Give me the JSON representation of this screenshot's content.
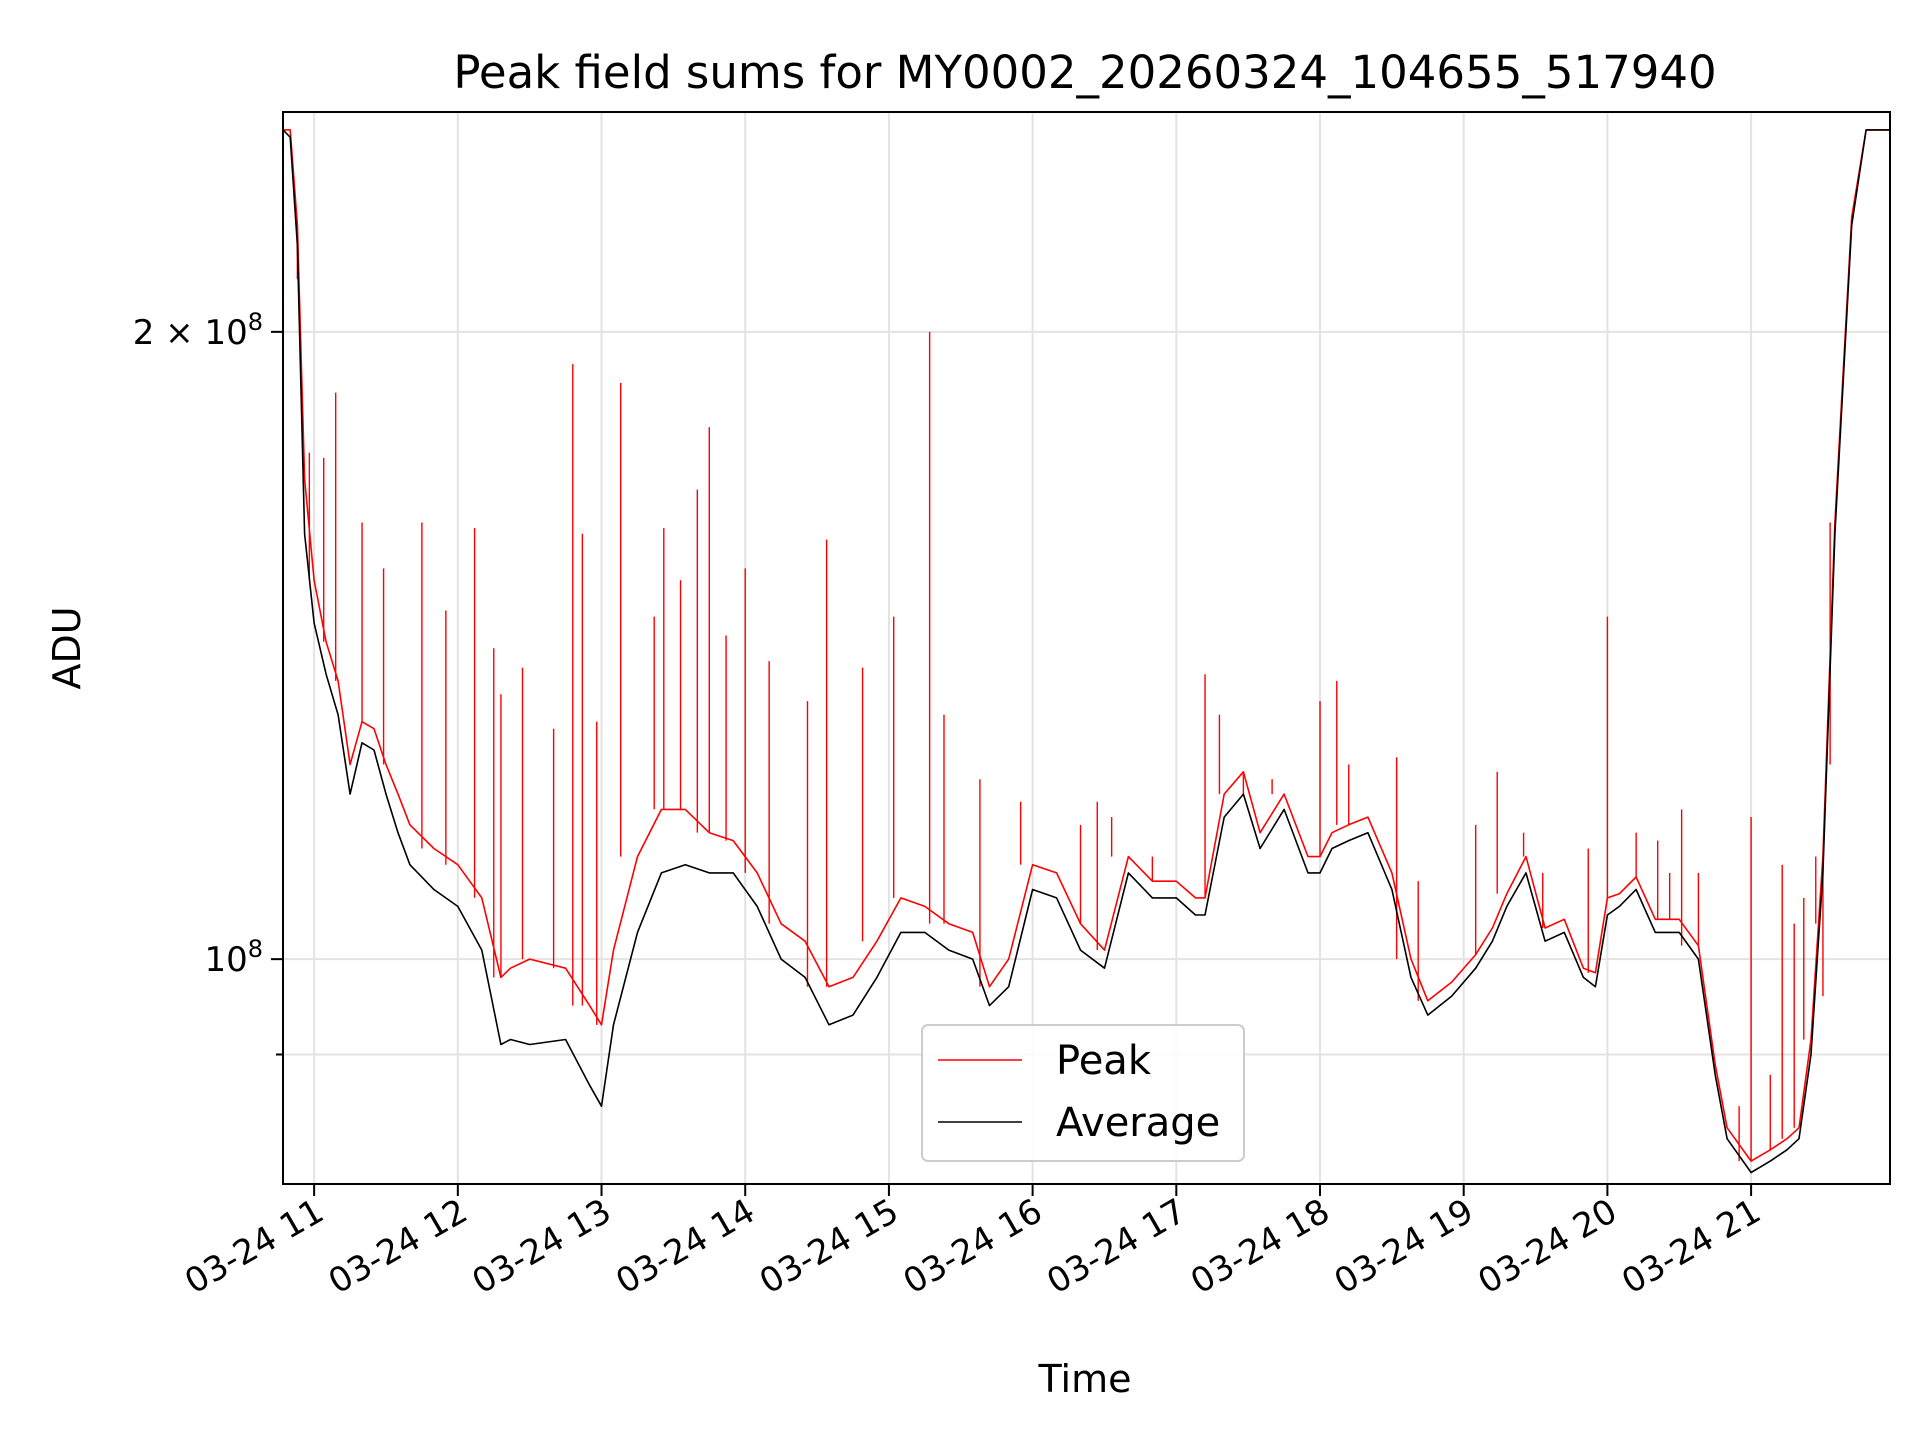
{
  "chart_data": {
    "type": "line",
    "title": "Peak field sums for MY0002_20260324_104655_517940",
    "xlabel": "Time",
    "ylabel": "ADU",
    "x_scale": "time",
    "y_scale": "log",
    "xlim": [
      "2026-03-24T10:47",
      "2026-03-24T21:58"
    ],
    "ylim": [
      78000000,
      255000000
    ],
    "x_ticks": [
      {
        "t": "2026-03-24T11:00",
        "label": "03-24 11"
      },
      {
        "t": "2026-03-24T12:00",
        "label": "03-24 12"
      },
      {
        "t": "2026-03-24T13:00",
        "label": "03-24 13"
      },
      {
        "t": "2026-03-24T14:00",
        "label": "03-24 14"
      },
      {
        "t": "2026-03-24T15:00",
        "label": "03-24 15"
      },
      {
        "t": "2026-03-24T16:00",
        "label": "03-24 16"
      },
      {
        "t": "2026-03-24T17:00",
        "label": "03-24 17"
      },
      {
        "t": "2026-03-24T18:00",
        "label": "03-24 18"
      },
      {
        "t": "2026-03-24T19:00",
        "label": "03-24 19"
      },
      {
        "t": "2026-03-24T20:00",
        "label": "03-24 20"
      },
      {
        "t": "2026-03-24T21:00",
        "label": "03-24 21"
      }
    ],
    "y_ticks": [
      {
        "value": 100000000,
        "mantissa": "",
        "base": "10",
        "exp": "8"
      },
      {
        "value": 200000000,
        "mantissa": "2 × ",
        "base": "10",
        "exp": "8"
      }
    ],
    "y_minor_ticks": [
      90000000
    ],
    "grid": true,
    "legend": "lower center",
    "series": [
      {
        "name": "Average",
        "color": "#000000",
        "x": [
          "2026-03-24T10:47",
          "2026-03-24T10:50",
          "2026-03-24T10:53",
          "2026-03-24T10:56",
          "2026-03-24T11:00",
          "2026-03-24T11:05",
          "2026-03-24T11:10",
          "2026-03-24T11:15",
          "2026-03-24T11:20",
          "2026-03-24T11:25",
          "2026-03-24T11:30",
          "2026-03-24T11:35",
          "2026-03-24T11:40",
          "2026-03-24T11:50",
          "2026-03-24T12:00",
          "2026-03-24T12:10",
          "2026-03-24T12:18",
          "2026-03-24T12:22",
          "2026-03-24T12:30",
          "2026-03-24T12:45",
          "2026-03-24T12:55",
          "2026-03-24T13:00",
          "2026-03-24T13:05",
          "2026-03-24T13:15",
          "2026-03-24T13:25",
          "2026-03-24T13:35",
          "2026-03-24T13:45",
          "2026-03-24T13:55",
          "2026-03-24T14:05",
          "2026-03-24T14:15",
          "2026-03-24T14:25",
          "2026-03-24T14:35",
          "2026-03-24T14:45",
          "2026-03-24T14:55",
          "2026-03-24T15:05",
          "2026-03-24T15:15",
          "2026-03-24T15:25",
          "2026-03-24T15:35",
          "2026-03-24T15:42",
          "2026-03-24T15:50",
          "2026-03-24T16:00",
          "2026-03-24T16:10",
          "2026-03-24T16:20",
          "2026-03-24T16:30",
          "2026-03-24T16:40",
          "2026-03-24T16:50",
          "2026-03-24T17:00",
          "2026-03-24T17:08",
          "2026-03-24T17:12",
          "2026-03-24T17:20",
          "2026-03-24T17:28",
          "2026-03-24T17:35",
          "2026-03-24T17:45",
          "2026-03-24T17:55",
          "2026-03-24T18:00",
          "2026-03-24T18:05",
          "2026-03-24T18:12",
          "2026-03-24T18:20",
          "2026-03-24T18:30",
          "2026-03-24T18:38",
          "2026-03-24T18:45",
          "2026-03-24T18:55",
          "2026-03-24T19:05",
          "2026-03-24T19:12",
          "2026-03-24T19:18",
          "2026-03-24T19:26",
          "2026-03-24T19:34",
          "2026-03-24T19:42",
          "2026-03-24T19:50",
          "2026-03-24T19:55",
          "2026-03-24T20:00",
          "2026-03-24T20:05",
          "2026-03-24T20:12",
          "2026-03-24T20:20",
          "2026-03-24T20:30",
          "2026-03-24T20:38",
          "2026-03-24T20:45",
          "2026-03-24T20:50",
          "2026-03-24T21:00",
          "2026-03-24T21:08",
          "2026-03-24T21:15",
          "2026-03-24T21:20",
          "2026-03-24T21:25",
          "2026-03-24T21:30",
          "2026-03-24T21:35",
          "2026-03-24T21:42",
          "2026-03-24T21:48",
          "2026-03-24T21:52",
          "2026-03-24T21:58"
        ],
        "y": [
          250000000,
          248000000,
          220000000,
          160000000,
          145000000,
          137000000,
          131000000,
          120000000,
          127000000,
          126000000,
          120000000,
          115000000,
          111000000,
          108000000,
          106000000,
          101000000,
          91000000,
          91500000,
          91000000,
          91500000,
          87000000,
          85000000,
          93000000,
          103000000,
          110000000,
          111000000,
          110000000,
          110000000,
          106000000,
          100000000,
          98000000,
          93000000,
          94000000,
          98000000,
          103000000,
          103000000,
          101000000,
          100000000,
          95000000,
          97000000,
          108000000,
          107000000,
          101000000,
          99000000,
          110000000,
          107000000,
          107000000,
          105000000,
          105000000,
          117000000,
          120000000,
          113000000,
          118000000,
          110000000,
          110000000,
          113000000,
          114000000,
          115000000,
          108000000,
          98000000,
          94000000,
          96000000,
          99000000,
          102000000,
          106000000,
          110000000,
          102000000,
          103000000,
          98000000,
          97000000,
          105000000,
          106000000,
          108000000,
          103000000,
          103000000,
          100000000,
          88000000,
          82000000,
          79000000,
          80000000,
          81000000,
          82000000,
          90000000,
          110000000,
          160000000,
          225000000,
          250000000,
          250000000,
          250000000
        ]
      },
      {
        "name": "Peak",
        "color": "#ff0000",
        "x": [
          "2026-03-24T10:47",
          "2026-03-24T10:50",
          "2026-03-24T10:53",
          "2026-03-24T10:56",
          "2026-03-24T11:00",
          "2026-03-24T11:05",
          "2026-03-24T11:10",
          "2026-03-24T11:15",
          "2026-03-24T11:20",
          "2026-03-24T11:25",
          "2026-03-24T11:30",
          "2026-03-24T11:35",
          "2026-03-24T11:40",
          "2026-03-24T11:50",
          "2026-03-24T12:00",
          "2026-03-24T12:10",
          "2026-03-24T12:18",
          "2026-03-24T12:22",
          "2026-03-24T12:30",
          "2026-03-24T12:45",
          "2026-03-24T12:55",
          "2026-03-24T13:00",
          "2026-03-24T13:05",
          "2026-03-24T13:15",
          "2026-03-24T13:25",
          "2026-03-24T13:35",
          "2026-03-24T13:45",
          "2026-03-24T13:55",
          "2026-03-24T14:05",
          "2026-03-24T14:15",
          "2026-03-24T14:25",
          "2026-03-24T14:35",
          "2026-03-24T14:45",
          "2026-03-24T14:55",
          "2026-03-24T15:05",
          "2026-03-24T15:15",
          "2026-03-24T15:25",
          "2026-03-24T15:35",
          "2026-03-24T15:42",
          "2026-03-24T15:50",
          "2026-03-24T16:00",
          "2026-03-24T16:10",
          "2026-03-24T16:20",
          "2026-03-24T16:30",
          "2026-03-24T16:40",
          "2026-03-24T16:50",
          "2026-03-24T17:00",
          "2026-03-24T17:08",
          "2026-03-24T17:12",
          "2026-03-24T17:20",
          "2026-03-24T17:28",
          "2026-03-24T17:35",
          "2026-03-24T17:45",
          "2026-03-24T17:55",
          "2026-03-24T18:00",
          "2026-03-24T18:05",
          "2026-03-24T18:12",
          "2026-03-24T18:20",
          "2026-03-24T18:30",
          "2026-03-24T18:38",
          "2026-03-24T18:45",
          "2026-03-24T18:55",
          "2026-03-24T19:05",
          "2026-03-24T19:12",
          "2026-03-24T19:18",
          "2026-03-24T19:26",
          "2026-03-24T19:34",
          "2026-03-24T19:42",
          "2026-03-24T19:50",
          "2026-03-24T19:55",
          "2026-03-24T20:00",
          "2026-03-24T20:05",
          "2026-03-24T20:12",
          "2026-03-24T20:20",
          "2026-03-24T20:30",
          "2026-03-24T20:38",
          "2026-03-24T20:45",
          "2026-03-24T20:50",
          "2026-03-24T21:00",
          "2026-03-24T21:08",
          "2026-03-24T21:15",
          "2026-03-24T21:20",
          "2026-03-24T21:25",
          "2026-03-24T21:30",
          "2026-03-24T21:35",
          "2026-03-24T21:42",
          "2026-03-24T21:48",
          "2026-03-24T21:52",
          "2026-03-24T21:58"
        ],
        "y": [
          250000000,
          250000000,
          225000000,
          170000000,
          152000000,
          142000000,
          136000000,
          124000000,
          130000000,
          129000000,
          124000000,
          120000000,
          116000000,
          113000000,
          111000000,
          107000000,
          98000000,
          99000000,
          100000000,
          99000000,
          95000000,
          93000000,
          101000000,
          112000000,
          118000000,
          118000000,
          115000000,
          114000000,
          110000000,
          104000000,
          102000000,
          97000000,
          98000000,
          102000000,
          107000000,
          106000000,
          104000000,
          103000000,
          97000000,
          100000000,
          111000000,
          110000000,
          104000000,
          101000000,
          112000000,
          109000000,
          109000000,
          107000000,
          107000000,
          120000000,
          123000000,
          115000000,
          120000000,
          112000000,
          112000000,
          115000000,
          116000000,
          117000000,
          110000000,
          100000000,
          95500000,
          97500000,
          100500000,
          103500000,
          107500000,
          112000000,
          103500000,
          104500000,
          99000000,
          98500000,
          107000000,
          107500000,
          109500000,
          104500000,
          104500000,
          101500000,
          89000000,
          83000000,
          80000000,
          81000000,
          82000000,
          83000000,
          91500000,
          112000000,
          162000000,
          227000000,
          250000000,
          250000000,
          250000000
        ]
      }
    ],
    "peak_spikes": [
      {
        "t": "2026-03-24T10:53",
        "y": 212000000
      },
      {
        "t": "2026-03-24T10:58",
        "y": 175000000
      },
      {
        "t": "2026-03-24T11:04",
        "y": 174000000
      },
      {
        "t": "2026-03-24T11:09",
        "y": 187000000
      },
      {
        "t": "2026-03-24T11:20",
        "y": 162000000
      },
      {
        "t": "2026-03-24T11:29",
        "y": 154000000
      },
      {
        "t": "2026-03-24T11:45",
        "y": 162000000
      },
      {
        "t": "2026-03-24T11:55",
        "y": 147000000
      },
      {
        "t": "2026-03-24T12:07",
        "y": 161000000
      },
      {
        "t": "2026-03-24T12:15",
        "y": 141000000
      },
      {
        "t": "2026-03-24T12:18",
        "y": 134000000
      },
      {
        "t": "2026-03-24T12:27",
        "y": 138000000
      },
      {
        "t": "2026-03-24T12:40",
        "y": 129000000
      },
      {
        "t": "2026-03-24T12:48",
        "y": 193000000
      },
      {
        "t": "2026-03-24T12:52",
        "y": 160000000
      },
      {
        "t": "2026-03-24T12:58",
        "y": 130000000
      },
      {
        "t": "2026-03-24T13:08",
        "y": 189000000
      },
      {
        "t": "2026-03-24T13:22",
        "y": 146000000
      },
      {
        "t": "2026-03-24T13:26",
        "y": 161000000
      },
      {
        "t": "2026-03-24T13:33",
        "y": 152000000
      },
      {
        "t": "2026-03-24T13:40",
        "y": 168000000
      },
      {
        "t": "2026-03-24T13:45",
        "y": 180000000
      },
      {
        "t": "2026-03-24T13:52",
        "y": 143000000
      },
      {
        "t": "2026-03-24T14:00",
        "y": 154000000
      },
      {
        "t": "2026-03-24T14:10",
        "y": 139000000
      },
      {
        "t": "2026-03-24T14:26",
        "y": 133000000
      },
      {
        "t": "2026-03-24T14:34",
        "y": 159000000
      },
      {
        "t": "2026-03-24T14:49",
        "y": 138000000
      },
      {
        "t": "2026-03-24T15:02",
        "y": 146000000
      },
      {
        "t": "2026-03-24T15:17",
        "y": 200000000
      },
      {
        "t": "2026-03-24T15:23",
        "y": 131000000
      },
      {
        "t": "2026-03-24T15:38",
        "y": 122000000
      },
      {
        "t": "2026-03-24T15:55",
        "y": 119000000
      },
      {
        "t": "2026-03-24T16:20",
        "y": 116000000
      },
      {
        "t": "2026-03-24T16:27",
        "y": 119000000
      },
      {
        "t": "2026-03-24T16:33",
        "y": 117000000
      },
      {
        "t": "2026-03-24T16:50",
        "y": 112000000
      },
      {
        "t": "2026-03-24T17:12",
        "y": 137000000
      },
      {
        "t": "2026-03-24T17:18",
        "y": 131000000
      },
      {
        "t": "2026-03-24T17:28",
        "y": 120000000
      },
      {
        "t": "2026-03-24T17:40",
        "y": 122000000
      },
      {
        "t": "2026-03-24T18:00",
        "y": 133000000
      },
      {
        "t": "2026-03-24T18:07",
        "y": 136000000
      },
      {
        "t": "2026-03-24T18:12",
        "y": 124000000
      },
      {
        "t": "2026-03-24T18:32",
        "y": 125000000
      },
      {
        "t": "2026-03-24T18:41",
        "y": 109000000
      },
      {
        "t": "2026-03-24T19:05",
        "y": 116000000
      },
      {
        "t": "2026-03-24T19:14",
        "y": 123000000
      },
      {
        "t": "2026-03-24T19:25",
        "y": 115000000
      },
      {
        "t": "2026-03-24T19:33",
        "y": 110000000
      },
      {
        "t": "2026-03-24T19:52",
        "y": 113000000
      },
      {
        "t": "2026-03-24T20:00",
        "y": 146000000
      },
      {
        "t": "2026-03-24T20:12",
        "y": 115000000
      },
      {
        "t": "2026-03-24T20:21",
        "y": 114000000
      },
      {
        "t": "2026-03-24T20:26",
        "y": 110000000
      },
      {
        "t": "2026-03-24T20:31",
        "y": 118000000
      },
      {
        "t": "2026-03-24T20:38",
        "y": 110000000
      },
      {
        "t": "2026-03-24T20:55",
        "y": 85000000
      },
      {
        "t": "2026-03-24T21:00",
        "y": 117000000
      },
      {
        "t": "2026-03-24T21:08",
        "y": 88000000
      },
      {
        "t": "2026-03-24T21:13",
        "y": 111000000
      },
      {
        "t": "2026-03-24T21:18",
        "y": 104000000
      },
      {
        "t": "2026-03-24T21:22",
        "y": 107000000
      },
      {
        "t": "2026-03-24T21:27",
        "y": 104000000
      },
      {
        "t": "2026-03-24T21:30",
        "y": 96000000
      },
      {
        "t": "2026-03-24T21:33",
        "y": 124000000
      }
    ]
  }
}
